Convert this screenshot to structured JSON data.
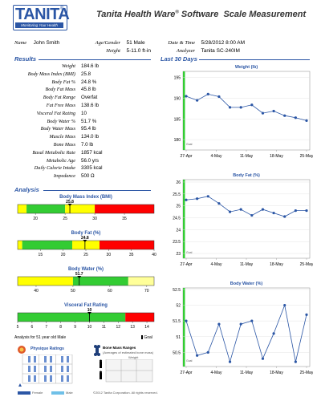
{
  "header": {
    "logo_text": "TANITA",
    "logo_tagline": "Monitoring Your Health",
    "title_main": "Tanita Health Ware",
    "title_reg": "®",
    "title_rest": " Software  Scale Measurement"
  },
  "info": {
    "name_label": "Name",
    "name_value": "John Smith",
    "agegender_label": "Age/Gender",
    "agegender_value": "51 Male",
    "height_label": "Height",
    "height_value": "5-11.0 ft-in",
    "datetime_label": "Date & Time",
    "datetime_value": "5/28/2012 8:00 AM",
    "analyzer_label": "Analyzer",
    "analyzer_value": "Tanita SC-240IM"
  },
  "results": {
    "heading": "Results",
    "rows": [
      {
        "label": "Weight",
        "value": "184.6 lb"
      },
      {
        "label": "Body Mass Index (BMI)",
        "value": "25.8"
      },
      {
        "label": "Body Fat %",
        "value": "24.8 %"
      },
      {
        "label": "Body Fat Mass",
        "value": "45.8 lb"
      },
      {
        "label": "Body Fat Range",
        "value": "Overfat"
      },
      {
        "label": "Fat Free Mass",
        "value": "138.6 lb"
      },
      {
        "label": "Visceral Fat Rating",
        "value": "10"
      },
      {
        "label": "Body Water %",
        "value": "51.7 %"
      },
      {
        "label": "Body Water Mass",
        "value": "95.4 lb"
      },
      {
        "label": "Muscle Mass",
        "value": "134.0 lb"
      },
      {
        "label": "Bone Mass",
        "value": "7.0 lb"
      },
      {
        "label": "Basal Metabolic Rate",
        "value": "1857 kcal"
      },
      {
        "label": "Metabolic Age",
        "value": "56.0 yrs"
      },
      {
        "label": "Daily Calorie Intake",
        "value": "3305 kcal"
      },
      {
        "label": "Impedance",
        "value": "500 Ω"
      }
    ]
  },
  "analysis": {
    "heading": "Analysis",
    "bars": [
      {
        "title": "Body Mass Index (BMI)",
        "value_label": "25.8",
        "value": 25.8,
        "min": 17,
        "max": 40,
        "ticks": [
          "20",
          "25",
          "30",
          "35"
        ],
        "tick_values": [
          20,
          25,
          30,
          35
        ],
        "zones": [
          [
            17,
            18.5,
            "#ffff00"
          ],
          [
            18.5,
            25,
            "#33cc33"
          ],
          [
            25,
            30,
            "#ffff00"
          ],
          [
            30,
            40,
            "#ff0000"
          ]
        ]
      },
      {
        "title": "Body Fat (%)",
        "value_label": "24.8",
        "value": 24.8,
        "min": 10,
        "max": 40,
        "ticks": [
          "15",
          "20",
          "25",
          "30",
          "35",
          "40"
        ],
        "tick_values": [
          15,
          20,
          25,
          30,
          35,
          40
        ],
        "zones": [
          [
            10,
            11,
            "#ffff00"
          ],
          [
            11,
            22,
            "#33cc33"
          ],
          [
            22,
            28,
            "#ffff00"
          ],
          [
            28,
            40,
            "#ff0000"
          ]
        ]
      },
      {
        "title": "Body Water (%)",
        "value_label": "51.7",
        "value": 51.7,
        "min": 35,
        "max": 72,
        "ticks": [
          "40",
          "50",
          "60",
          "70"
        ],
        "tick_values": [
          40,
          50,
          60,
          70
        ],
        "zones": [
          [
            35,
            50,
            "#ffff00"
          ],
          [
            50,
            65,
            "#33cc33"
          ],
          [
            65,
            72,
            "#ffff99"
          ]
        ]
      }
    ],
    "visceral": {
      "title": "Visceral Fat Rating",
      "value_label": "10",
      "value": 10,
      "min": 5,
      "max": 14.5,
      "ticks": [
        "5",
        "6",
        "7",
        "8",
        "9",
        "10",
        "11",
        "12",
        "13",
        "14"
      ],
      "tick_values": [
        5,
        6,
        7,
        8,
        9,
        10,
        11,
        12,
        13,
        14
      ],
      "zones": [
        [
          5,
          12.5,
          "#33cc33"
        ],
        [
          12.5,
          14.5,
          "#ff0000"
        ]
      ]
    },
    "analysis_for": "Analysis for 51 year old Male",
    "goal_label": "Goal",
    "physique_title": "Physique Ratings",
    "bone_title": "Bone Mass Ranges",
    "bone_sub": "(Averages of estimated bone mass)",
    "bone_weight_header": "Weight",
    "legend_female": "Female",
    "legend_male": "Male",
    "footer": "©2012 Tanita Corporation. All rights reserved."
  },
  "last30": {
    "heading": "Last 30 Days",
    "goal_tag": "Goal",
    "x_ticks": [
      "27-Apr",
      "4-May",
      "11-May",
      "18-May",
      "25-May"
    ]
  },
  "chart_data": [
    {
      "type": "line",
      "title": "Weight (lb)",
      "x": [
        "27-Apr",
        "29-Apr",
        "1-May",
        "3-May",
        "6-May",
        "9-May",
        "12-May",
        "15-May",
        "18-May",
        "21-May",
        "24-May",
        "27-May"
      ],
      "values": [
        190.5,
        189.5,
        191.0,
        190.4,
        187.8,
        187.8,
        188.4,
        186.4,
        186.9,
        185.8,
        185.3,
        184.6
      ],
      "ylim": [
        177.5,
        196.5
      ],
      "yticks": [
        "180",
        "185",
        "190",
        "195"
      ]
    },
    {
      "type": "line",
      "title": "Body Fat (%)",
      "x": [
        "27-Apr",
        "29-Apr",
        "1-May",
        "3-May",
        "6-May",
        "9-May",
        "12-May",
        "15-May",
        "18-May",
        "21-May",
        "24-May",
        "27-May"
      ],
      "values": [
        25.25,
        25.3,
        25.4,
        25.1,
        24.75,
        24.85,
        24.6,
        24.85,
        24.7,
        24.55,
        24.8,
        24.8
      ],
      "ylim": [
        22.8,
        26.1
      ],
      "yticks": [
        "23",
        "23.5",
        "24",
        "24.5",
        "25",
        "25.5",
        "26"
      ]
    },
    {
      "type": "line",
      "title": "Body Water (%)",
      "x": [
        "27-Apr",
        "30-Apr",
        "2-May",
        "5-May",
        "8-May",
        "10-May",
        "13-May",
        "16-May",
        "19-May",
        "21-May",
        "24-May",
        "27-May"
      ],
      "values": [
        51.5,
        50.4,
        50.5,
        51.4,
        50.2,
        51.4,
        51.5,
        50.3,
        51.1,
        52.0,
        50.2,
        51.7
      ],
      "ylim": [
        50.05,
        52.55
      ],
      "yticks": [
        "50.5",
        "51",
        "51.5",
        "52",
        "52.5"
      ]
    }
  ]
}
